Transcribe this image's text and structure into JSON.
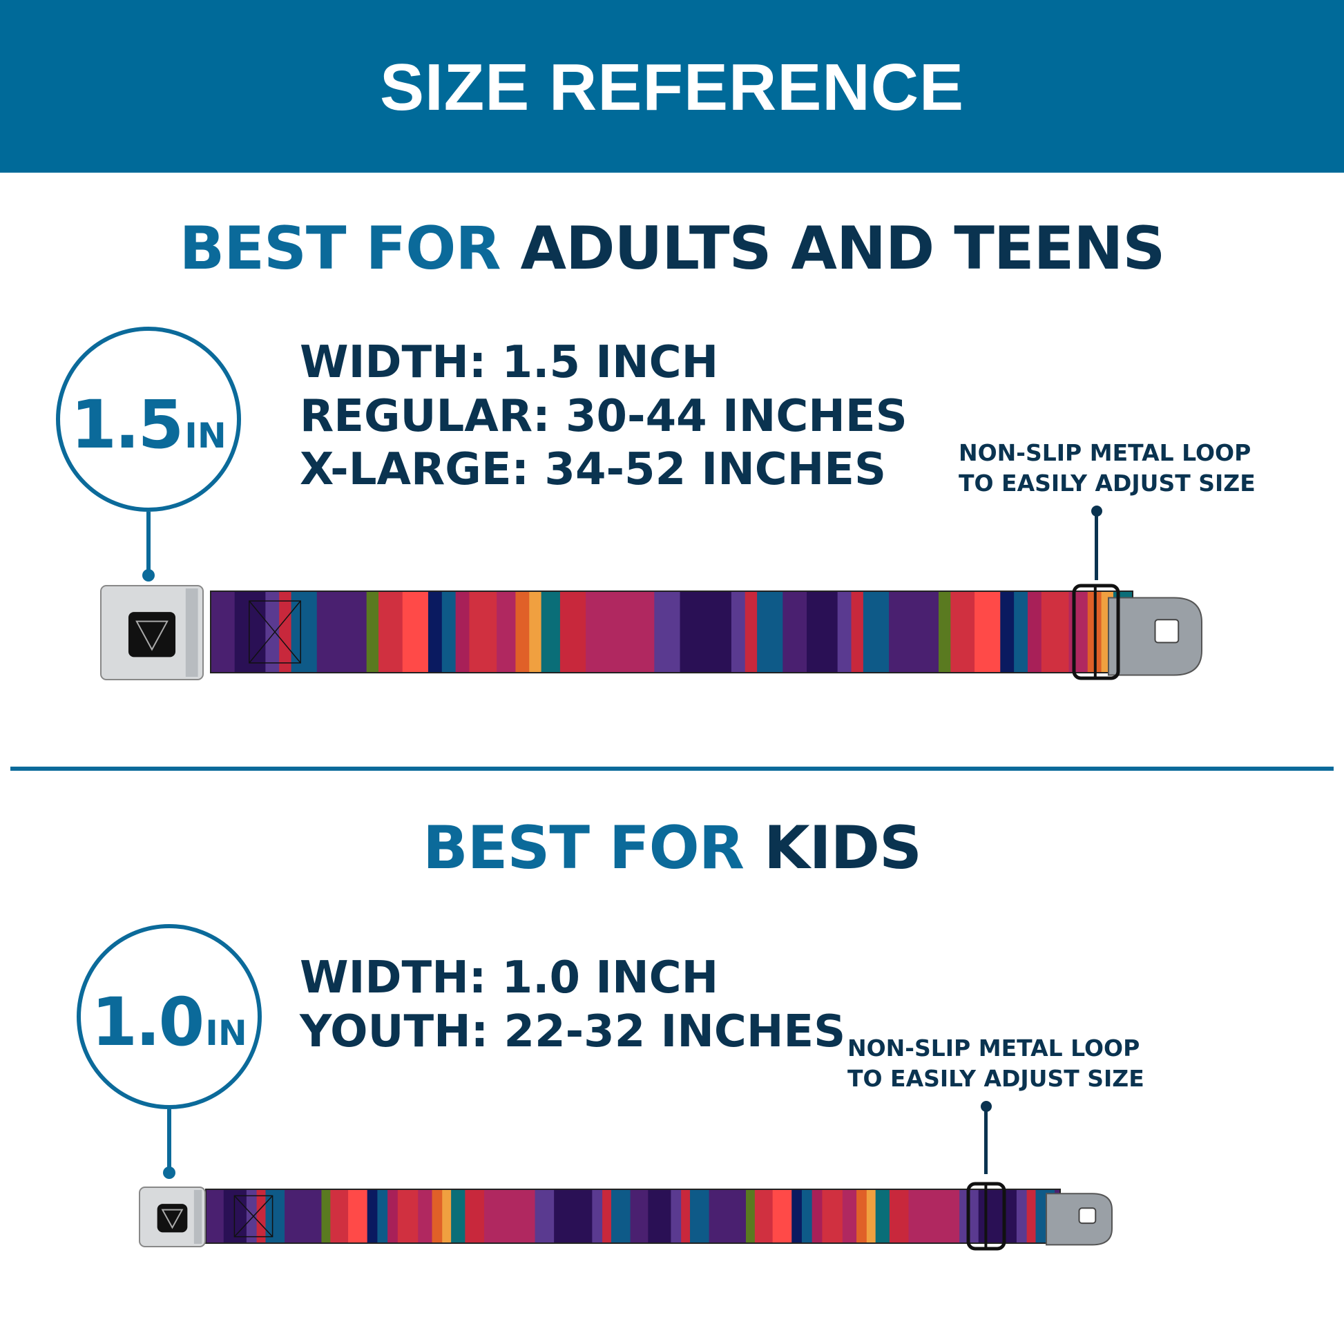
{
  "header": {
    "title": "SIZE REFERENCE"
  },
  "adults": {
    "title_prefix": "BEST FOR",
    "title_main": "ADULTS AND TEENS",
    "badge": {
      "value": "1.5",
      "unit": "IN"
    },
    "specs": [
      "WIDTH: 1.5 INCH",
      "REGULAR: 30-44 INCHES",
      "X-LARGE: 34-52 INCHES"
    ],
    "note": [
      "NON-SLIP METAL LOOP",
      "TO EASILY ADJUST SIZE"
    ]
  },
  "kids": {
    "title_prefix": "BEST FOR",
    "title_main": "KIDS",
    "badge": {
      "value": "1.0",
      "unit": "IN"
    },
    "specs": [
      "WIDTH: 1.0 INCH",
      "YOUTH: 22-32 INCHES"
    ],
    "note": [
      "NON-SLIP METAL LOOP",
      "TO EASILY ADJUST SIZE"
    ]
  },
  "colors": {
    "header": "#006a99",
    "accent_blue": "#0b6a9a",
    "navy": "#0a3350"
  }
}
